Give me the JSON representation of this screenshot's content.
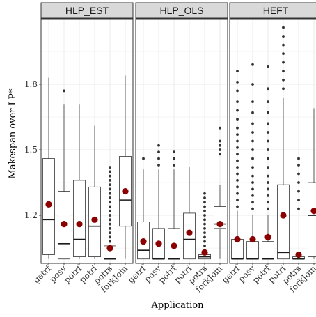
{
  "chart_data": {
    "type": "boxplot",
    "ylabel": "Makespan over LP*",
    "xlabel": "Application",
    "ylim": [
      0.98,
      2.1
    ],
    "yticks": [
      1.2,
      1.5,
      1.8
    ],
    "ytick_labels": [
      "1.2",
      "1.5",
      "1.8"
    ],
    "categories": [
      "getrf",
      "posv",
      "potrf",
      "potri",
      "potrs",
      "forkJoin"
    ],
    "colors": {
      "mean": "#8b0000",
      "outlier": "#333333",
      "box": "#333333",
      "strip_bg": "#d9d9d9",
      "grid": "#ebebeb"
    },
    "panels": [
      {
        "name": "HLP_EST",
        "boxes": [
          {
            "category": "getrf",
            "min": 1.0,
            "q1": 1.02,
            "median": 1.18,
            "q3": 1.46,
            "max": 1.83,
            "mean": 1.25,
            "outliers": []
          },
          {
            "category": "posv",
            "min": 1.0,
            "q1": 1.0,
            "median": 1.07,
            "q3": 1.31,
            "max": 1.71,
            "mean": 1.16,
            "outliers": [
              1.77
            ]
          },
          {
            "category": "potrf",
            "min": 1.0,
            "q1": 1.01,
            "median": 1.09,
            "q3": 1.36,
            "max": 1.71,
            "mean": 1.16,
            "outliers": []
          },
          {
            "category": "potri",
            "min": 1.0,
            "q1": 1.01,
            "median": 1.15,
            "q3": 1.33,
            "max": 1.61,
            "mean": 1.18,
            "outliers": []
          },
          {
            "category": "potrs",
            "min": 1.0,
            "q1": 1.0,
            "median": 1.0,
            "q3": 1.06,
            "max": 1.06,
            "mean": 1.05,
            "outliers": [
              1.08,
              1.1,
              1.12,
              1.14,
              1.16,
              1.18,
              1.2,
              1.22,
              1.24,
              1.26,
              1.28,
              1.3,
              1.32,
              1.34,
              1.36,
              1.38,
              1.4,
              1.42
            ]
          },
          {
            "category": "forkJoin",
            "min": 1.0,
            "q1": 1.15,
            "median": 1.27,
            "q3": 1.47,
            "max": 1.84,
            "mean": 1.31,
            "outliers": []
          }
        ]
      },
      {
        "name": "HLP_OLS",
        "boxes": [
          {
            "category": "getrf",
            "min": 1.0,
            "q1": 1.0,
            "median": 1.04,
            "q3": 1.17,
            "max": 1.41,
            "mean": 1.08,
            "outliers": [
              1.46
            ]
          },
          {
            "category": "posv",
            "min": 1.0,
            "q1": 1.0,
            "median": 1.0,
            "q3": 1.14,
            "max": 1.41,
            "mean": 1.07,
            "outliers": [
              1.43,
              1.46,
              1.49,
              1.52
            ]
          },
          {
            "category": "potrf",
            "min": 1.0,
            "q1": 1.0,
            "median": 1.0,
            "q3": 1.14,
            "max": 1.41,
            "mean": 1.06,
            "outliers": [
              1.43,
              1.46,
              1.49
            ]
          },
          {
            "category": "potri",
            "min": 1.0,
            "q1": 1.0,
            "median": 1.09,
            "q3": 1.21,
            "max": 1.42,
            "mean": 1.12,
            "outliers": []
          },
          {
            "category": "potrs",
            "min": 1.0,
            "q1": 1.0,
            "median": 1.01,
            "q3": 1.02,
            "max": 1.04,
            "mean": 1.03,
            "outliers": [
              1.06,
              1.08,
              1.1,
              1.12,
              1.14,
              1.16,
              1.18,
              1.2,
              1.22,
              1.24,
              1.26,
              1.28,
              1.3
            ]
          },
          {
            "category": "forkJoin",
            "min": 1.0,
            "q1": 1.14,
            "median": 1.16,
            "q3": 1.24,
            "max": 1.34,
            "mean": 1.16,
            "outliers": [
              1.48,
              1.5,
              1.52,
              1.54,
              1.6
            ]
          }
        ]
      },
      {
        "name": "HEFT",
        "boxes": [
          {
            "category": "getrf",
            "min": 1.0,
            "q1": 1.0,
            "median": 1.0,
            "q3": 1.09,
            "max": 1.22,
            "mean": 1.09,
            "outliers": [
              1.24,
              1.27,
              1.3,
              1.33,
              1.36,
              1.39,
              1.42,
              1.45,
              1.48,
              1.51,
              1.54,
              1.57,
              1.6,
              1.64,
              1.68,
              1.72,
              1.77,
              1.81,
              1.86
            ]
          },
          {
            "category": "posv",
            "min": 1.0,
            "q1": 1.0,
            "median": 1.0,
            "q3": 1.08,
            "max": 1.2,
            "mean": 1.09,
            "outliers": [
              1.23,
              1.26,
              1.29,
              1.32,
              1.35,
              1.38,
              1.42,
              1.46,
              1.5,
              1.54,
              1.58,
              1.62,
              1.67,
              1.72,
              1.8,
              1.89
            ]
          },
          {
            "category": "potrf",
            "min": 1.0,
            "q1": 1.0,
            "median": 1.0,
            "q3": 1.08,
            "max": 1.2,
            "mean": 1.1,
            "outliers": [
              1.23,
              1.26,
              1.29,
              1.32,
              1.35,
              1.38,
              1.42,
              1.46,
              1.5,
              1.54,
              1.58,
              1.62,
              1.67,
              1.72,
              1.78,
              1.88
            ]
          },
          {
            "category": "potri",
            "min": 1.0,
            "q1": 1.0,
            "median": 1.03,
            "q3": 1.34,
            "max": 1.74,
            "mean": 1.2,
            "outliers": [
              1.78,
              1.82,
              1.86,
              1.9,
              1.94,
              1.98,
              2.02,
              2.06
            ]
          },
          {
            "category": "potrs",
            "min": 1.0,
            "q1": 1.0,
            "median": 1.0,
            "q3": 1.01,
            "max": 1.01,
            "mean": 1.02,
            "outliers": [
              1.23,
              1.27,
              1.31,
              1.35,
              1.39,
              1.43,
              1.46
            ]
          },
          {
            "category": "forkJoin",
            "min": 1.0,
            "q1": 1.01,
            "median": 1.2,
            "q3": 1.35,
            "max": 1.69,
            "mean": 1.22,
            "outliers": []
          }
        ]
      }
    ]
  }
}
